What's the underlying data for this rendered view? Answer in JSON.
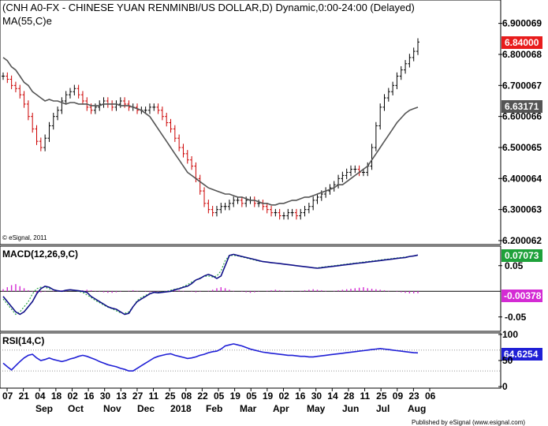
{
  "chart_data": {
    "type": "line",
    "title": "(CNH A0-FX - CHINESE YUAN RENMINBI/US DOLLAR,D) Dynamic,0:00-24:00 (Delayed)",
    "copyright": "© eSignal, 2011",
    "footer": "Published by eSignal (www.esignal.com)",
    "x_axis": {
      "day_ticks": [
        "07",
        "21",
        "04",
        "18",
        "02",
        "16",
        "30",
        "13",
        "27",
        "11",
        "25",
        "08",
        "22",
        "05",
        "19",
        "05",
        "19",
        "02",
        "16",
        "30",
        "14",
        "28",
        "11",
        "25",
        "09",
        "23",
        "06"
      ],
      "month_labels": [
        "Sep",
        "Oct",
        "Nov",
        "Dec",
        "2018",
        "Feb",
        "Mar",
        "Apr",
        "May",
        "Jun",
        "Jul",
        "Aug"
      ]
    },
    "price_panel": {
      "series_label": "MA(55,C)e",
      "ylim": [
        6.2,
        6.95
      ],
      "y_ticks": [
        "6.900069",
        "6.800068",
        "6.700067",
        "6.600066",
        "6.500065",
        "6.400064",
        "6.300063",
        "6.200062"
      ],
      "last_price": "6.84000",
      "last_price_color": "#e81c1c",
      "ma_last": "6.63171",
      "ma_color": "#555555",
      "bar_colors": {
        "up": "#000000",
        "down": "#cc0000"
      },
      "close": [
        6.73,
        6.72,
        6.7,
        6.69,
        6.67,
        6.64,
        6.6,
        6.56,
        6.52,
        6.5,
        6.53,
        6.57,
        6.6,
        6.62,
        6.65,
        6.67,
        6.68,
        6.69,
        6.67,
        6.65,
        6.63,
        6.62,
        6.63,
        6.64,
        6.65,
        6.64,
        6.63,
        6.64,
        6.65,
        6.64,
        6.63,
        6.63,
        6.62,
        6.62,
        6.62,
        6.63,
        6.63,
        6.62,
        6.6,
        6.58,
        6.56,
        6.53,
        6.5,
        6.48,
        6.46,
        6.44,
        6.4,
        6.36,
        6.32,
        6.3,
        6.29,
        6.3,
        6.31,
        6.31,
        6.32,
        6.33,
        6.33,
        6.32,
        6.33,
        6.33,
        6.32,
        6.32,
        6.31,
        6.3,
        6.29,
        6.29,
        6.28,
        6.28,
        6.29,
        6.29,
        6.28,
        6.29,
        6.3,
        6.31,
        6.33,
        6.34,
        6.35,
        6.36,
        6.37,
        6.38,
        6.4,
        6.41,
        6.42,
        6.43,
        6.43,
        6.42,
        6.42,
        6.44,
        6.5,
        6.57,
        6.63,
        6.66,
        6.68,
        6.7,
        6.73,
        6.75,
        6.77,
        6.79,
        6.81,
        6.84
      ],
      "ma55": [
        6.79,
        6.78,
        6.76,
        6.75,
        6.73,
        6.71,
        6.7,
        6.68,
        6.67,
        6.66,
        6.65,
        6.655,
        6.65,
        6.65,
        6.645,
        6.64,
        6.645,
        6.645,
        6.64,
        6.64,
        6.64,
        6.635,
        6.635,
        6.635,
        6.64,
        6.64,
        6.64,
        6.64,
        6.635,
        6.635,
        6.635,
        6.63,
        6.625,
        6.62,
        6.61,
        6.6,
        6.58,
        6.56,
        6.54,
        6.52,
        6.5,
        6.48,
        6.46,
        6.44,
        6.42,
        6.41,
        6.4,
        6.39,
        6.38,
        6.37,
        6.365,
        6.36,
        6.355,
        6.35,
        6.35,
        6.345,
        6.34,
        6.34,
        6.335,
        6.33,
        6.33,
        6.325,
        6.32,
        6.32,
        6.315,
        6.315,
        6.32,
        6.32,
        6.325,
        6.33,
        6.33,
        6.335,
        6.34,
        6.34,
        6.345,
        6.35,
        6.355,
        6.36,
        6.365,
        6.37,
        6.38,
        6.38,
        6.39,
        6.4,
        6.41,
        6.42,
        6.43,
        6.44,
        6.46,
        6.48,
        6.5,
        6.52,
        6.54,
        6.56,
        6.58,
        6.595,
        6.61,
        6.62,
        6.625,
        6.63
      ]
    },
    "macd_panel": {
      "label": "MACD(12,26,9,C)",
      "ylim": [
        -0.075,
        0.085
      ],
      "y_ticks": [
        0.05,
        -0.05
      ],
      "zero_line": 0,
      "macd_last": "0.07073",
      "macd_color": "#1ea13a",
      "hist_last": "-0.00378",
      "hist_color": "#d42bd4",
      "macd": [
        -0.01,
        -0.02,
        -0.03,
        -0.04,
        -0.045,
        -0.04,
        -0.03,
        -0.02,
        -0.005,
        0.005,
        0.01,
        0.008,
        0.003,
        0.001,
        0.0,
        0.002,
        0.003,
        0.002,
        0.001,
        0.0,
        -0.002,
        -0.01,
        -0.015,
        -0.02,
        -0.025,
        -0.03,
        -0.033,
        -0.035,
        -0.04,
        -0.045,
        -0.043,
        -0.03,
        -0.02,
        -0.015,
        -0.01,
        -0.005,
        -0.002,
        -0.003,
        -0.002,
        -0.001,
        0.0,
        0.003,
        0.005,
        0.008,
        0.01,
        0.015,
        0.022,
        0.025,
        0.03,
        0.033,
        0.03,
        0.025,
        0.03,
        0.05,
        0.07,
        0.072,
        0.07,
        0.068,
        0.066,
        0.064,
        0.062,
        0.06,
        0.058,
        0.057,
        0.056,
        0.055,
        0.054,
        0.053,
        0.052,
        0.051,
        0.05,
        0.049,
        0.048,
        0.047,
        0.046,
        0.045,
        0.046,
        0.047,
        0.048,
        0.049,
        0.05,
        0.051,
        0.052,
        0.053,
        0.054,
        0.055,
        0.056,
        0.057,
        0.058,
        0.059,
        0.06,
        0.061,
        0.062,
        0.063,
        0.064,
        0.065,
        0.066,
        0.068,
        0.069,
        0.07073
      ],
      "signal": [
        -0.015,
        -0.025,
        -0.035,
        -0.045,
        -0.04,
        -0.03,
        -0.02,
        -0.005,
        0.005,
        0.008,
        0.008,
        0.005,
        0.003,
        0.001,
        0.0,
        0.002,
        0.003,
        0.002,
        0.0,
        -0.002,
        -0.007,
        -0.012,
        -0.018,
        -0.022,
        -0.027,
        -0.031,
        -0.034,
        -0.038,
        -0.042,
        -0.043,
        -0.04,
        -0.03,
        -0.018,
        -0.012,
        -0.008,
        -0.004,
        -0.003,
        -0.002,
        -0.001,
        0.0,
        0.002,
        0.004,
        0.006,
        0.009,
        0.013,
        0.018,
        0.022,
        0.026,
        0.029,
        0.03,
        0.028,
        0.03,
        0.04,
        0.06,
        0.07,
        0.07,
        0.069,
        0.067,
        0.065,
        0.063,
        0.061,
        0.059,
        0.058,
        0.057,
        0.056,
        0.055,
        0.054,
        0.053,
        0.052,
        0.051,
        0.05,
        0.049,
        0.048,
        0.047,
        0.046,
        0.046,
        0.047,
        0.048,
        0.049,
        0.05,
        0.051,
        0.052,
        0.053,
        0.054,
        0.055,
        0.056,
        0.057,
        0.058,
        0.059,
        0.06,
        0.061,
        0.062,
        0.063,
        0.064,
        0.065,
        0.066,
        0.067,
        0.068,
        0.069,
        0.07
      ],
      "hist": [
        0.004,
        0.008,
        0.012,
        0.014,
        0.01,
        0.006,
        0.002,
        -0.001,
        -0.003,
        -0.002,
        -0.001,
        0.0,
        0.001,
        0.002,
        0.002,
        0.001,
        0.0,
        0.0,
        0.001,
        0.002,
        0.003,
        0.002,
        0.001,
        -0.001,
        -0.002,
        -0.003,
        -0.003,
        -0.002,
        -0.001,
        0.0,
        0.001,
        0.002,
        0.001,
        0.0,
        -0.001,
        -0.002,
        -0.002,
        -0.001,
        0.0,
        0.001,
        0.002,
        0.003,
        0.002,
        0.001,
        0.0,
        -0.001,
        -0.002,
        -0.001,
        0.0,
        0.001,
        0.003,
        0.006,
        0.008,
        0.006,
        0.003,
        0.001,
        0.0,
        -0.001,
        -0.002,
        -0.003,
        -0.002,
        -0.001,
        0.0,
        0.001,
        0.002,
        0.003,
        0.002,
        0.001,
        0.0,
        -0.001,
        0.0,
        0.001,
        0.002,
        0.003,
        0.004,
        0.003,
        0.002,
        0.001,
        0.0,
        0.001,
        0.002,
        0.003,
        0.004,
        0.005,
        0.006,
        0.007,
        0.008,
        0.006,
        0.005,
        0.004,
        0.003,
        0.002,
        0.001,
        0.0,
        -0.001,
        -0.002,
        -0.003,
        -0.004,
        -0.004,
        -0.00378
      ]
    },
    "rsi_panel": {
      "label": "RSI(14,C)",
      "ylim": [
        0,
        100
      ],
      "y_ticks": [
        100,
        50,
        0
      ],
      "ref_lines": [
        70,
        30
      ],
      "rsi_last": "64.6254",
      "rsi_color": "#1f1fd6",
      "rsi": [
        45,
        38,
        32,
        40,
        48,
        55,
        60,
        62,
        55,
        50,
        52,
        55,
        52,
        50,
        48,
        50,
        53,
        55,
        58,
        60,
        58,
        55,
        52,
        48,
        45,
        42,
        40,
        38,
        35,
        33,
        30,
        30,
        35,
        40,
        45,
        50,
        55,
        58,
        60,
        62,
        63,
        60,
        58,
        56,
        54,
        55,
        57,
        60,
        62,
        65,
        67,
        68,
        72,
        78,
        80,
        82,
        80,
        78,
        75,
        72,
        70,
        68,
        66,
        65,
        64,
        63,
        62,
        61,
        60,
        60,
        59,
        58,
        58,
        57,
        57,
        58,
        59,
        60,
        61,
        62,
        63,
        64,
        65,
        66,
        67,
        68,
        69,
        70,
        71,
        72,
        73,
        72,
        71,
        70,
        69,
        68,
        67,
        66,
        65,
        64.6254
      ]
    }
  }
}
